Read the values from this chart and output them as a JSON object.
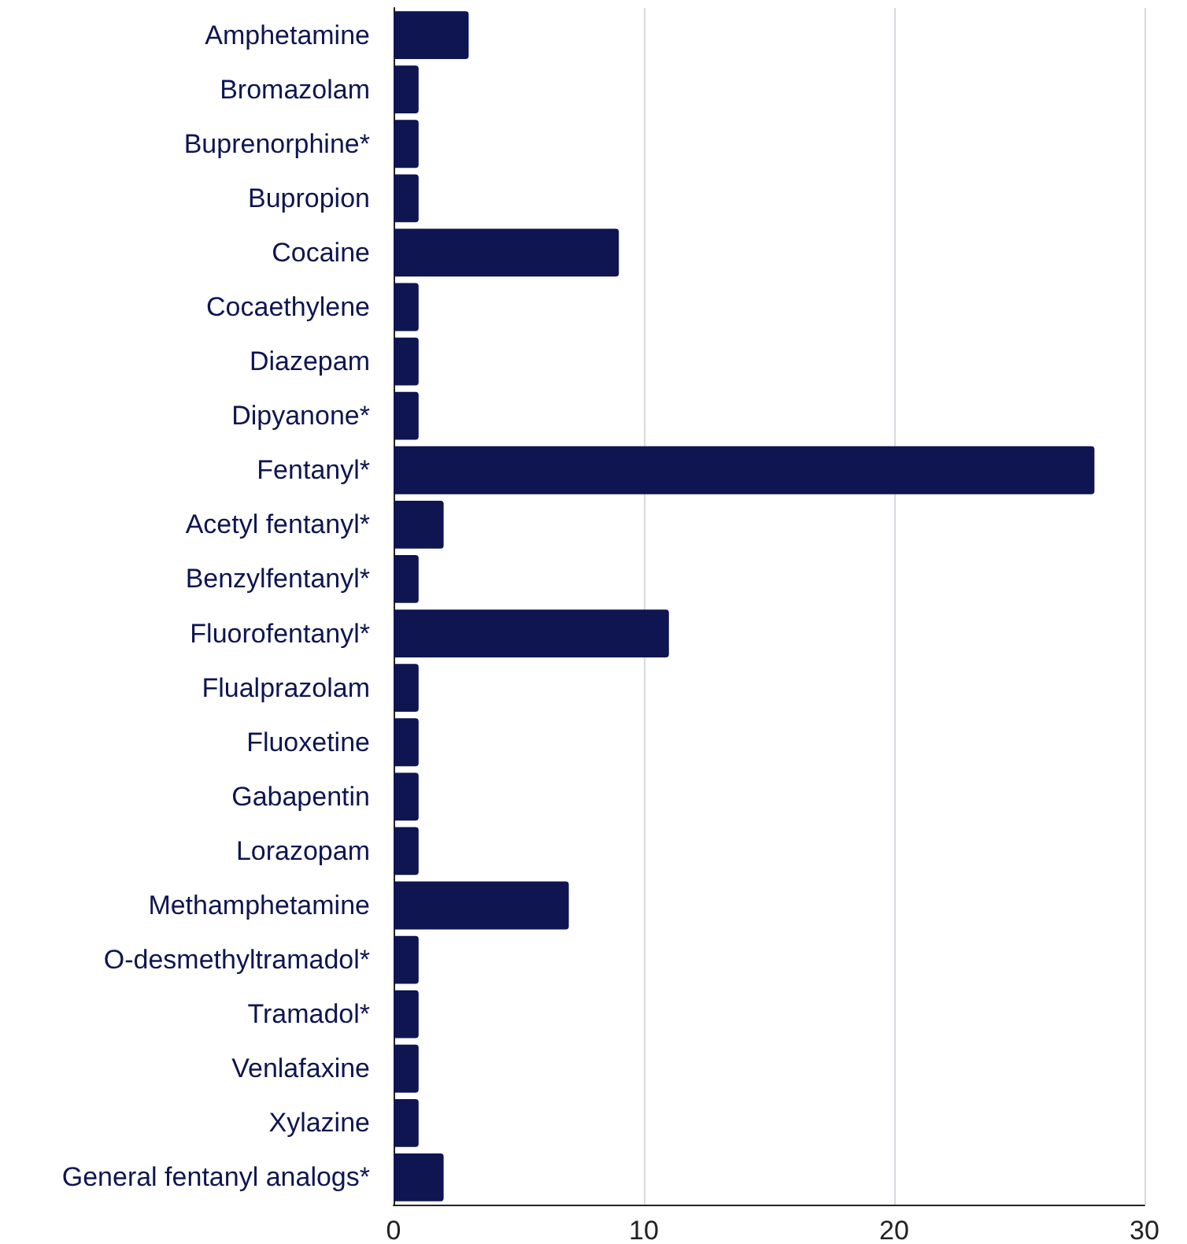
{
  "chart_data": {
    "type": "bar",
    "orientation": "horizontal",
    "categories": [
      "Amphetamine",
      "Bromazolam",
      "Buprenorphine*",
      "Bupropion",
      "Cocaine",
      "Cocaethylene",
      "Diazepam",
      "Dipyanone*",
      "Fentanyl*",
      "Acetyl fentanyl*",
      "Benzylfentanyl*",
      "Fluorofentanyl*",
      "Flualprazolam",
      "Fluoxetine",
      "Gabapentin",
      "Lorazopam",
      "Methamphetamine",
      "O-desmethyltramadol*",
      "Tramadol*",
      "Venlafaxine",
      "Xylazine",
      "General fentanyl analogs*"
    ],
    "values": [
      3,
      1,
      1,
      1,
      9,
      1,
      1,
      1,
      28,
      2,
      1,
      11,
      1,
      1,
      1,
      1,
      7,
      1,
      1,
      1,
      1,
      2
    ],
    "color": "#0e1551",
    "xlim": [
      0,
      30
    ],
    "xticks": [
      0,
      10,
      20,
      30
    ],
    "grid": "x"
  }
}
